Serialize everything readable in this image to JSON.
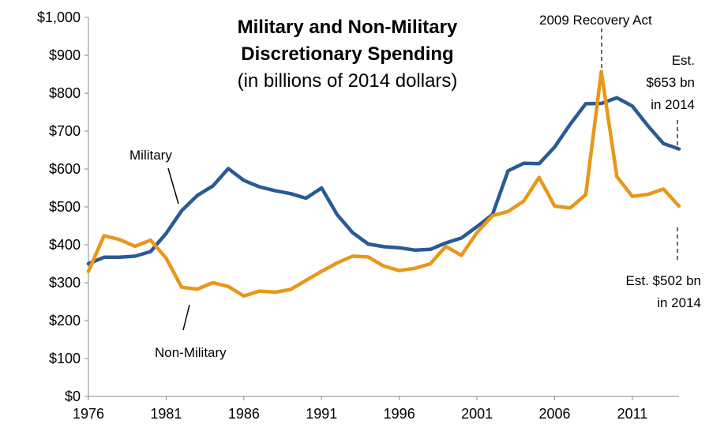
{
  "chart_data": {
    "type": "line",
    "title": "Military and Non-Military",
    "title_line2": "Discretionary Spending",
    "subtitle": "(in billions of 2014 dollars)",
    "xlabel": "",
    "ylabel": "",
    "xlim": [
      1976,
      2014
    ],
    "ylim": [
      0,
      1000
    ],
    "x_ticks": [
      "1976",
      "1981",
      "1986",
      "1991",
      "1996",
      "2001",
      "2006",
      "2011"
    ],
    "y_ticks": [
      "$0",
      "$100",
      "$200",
      "$300",
      "$400",
      "$500",
      "$600",
      "$700",
      "$800",
      "$900",
      "$1,000"
    ],
    "grid": false,
    "legend": "none",
    "x": [
      1976,
      1977,
      1978,
      1979,
      1980,
      1981,
      1982,
      1983,
      1984,
      1985,
      1986,
      1987,
      1988,
      1989,
      1990,
      1991,
      1992,
      1993,
      1994,
      1995,
      1996,
      1997,
      1998,
      1999,
      2000,
      2001,
      2002,
      2003,
      2004,
      2005,
      2006,
      2007,
      2008,
      2009,
      2010,
      2011,
      2012,
      2013,
      2014
    ],
    "series": [
      {
        "name": "Military",
        "color": "#2a5a94",
        "values": [
          350,
          367,
          367,
          370,
          382,
          430,
          490,
          530,
          555,
          601,
          570,
          553,
          543,
          535,
          523,
          550,
          480,
          432,
          402,
          395,
          392,
          386,
          388,
          405,
          418,
          448,
          480,
          595,
          615,
          614,
          658,
          718,
          772,
          773,
          788,
          766,
          714,
          667,
          653
        ]
      },
      {
        "name": "Non-Military",
        "color": "#e8971a",
        "values": [
          330,
          424,
          414,
          396,
          412,
          365,
          288,
          283,
          300,
          290,
          265,
          278,
          275,
          282,
          306,
          330,
          352,
          370,
          368,
          344,
          332,
          338,
          350,
          396,
          372,
          432,
          477,
          488,
          515,
          578,
          502,
          497,
          532,
          857,
          580,
          528,
          533,
          547,
          502
        ]
      }
    ],
    "annotations": {
      "military_label": "Military",
      "non_military_label": "Non-Military",
      "recovery_act": "2009 Recovery Act",
      "military_est": [
        "Est.",
        "$653 bn",
        "in 2014"
      ],
      "non_military_est": [
        "Est. $502 bn",
        "in 2014"
      ]
    }
  }
}
